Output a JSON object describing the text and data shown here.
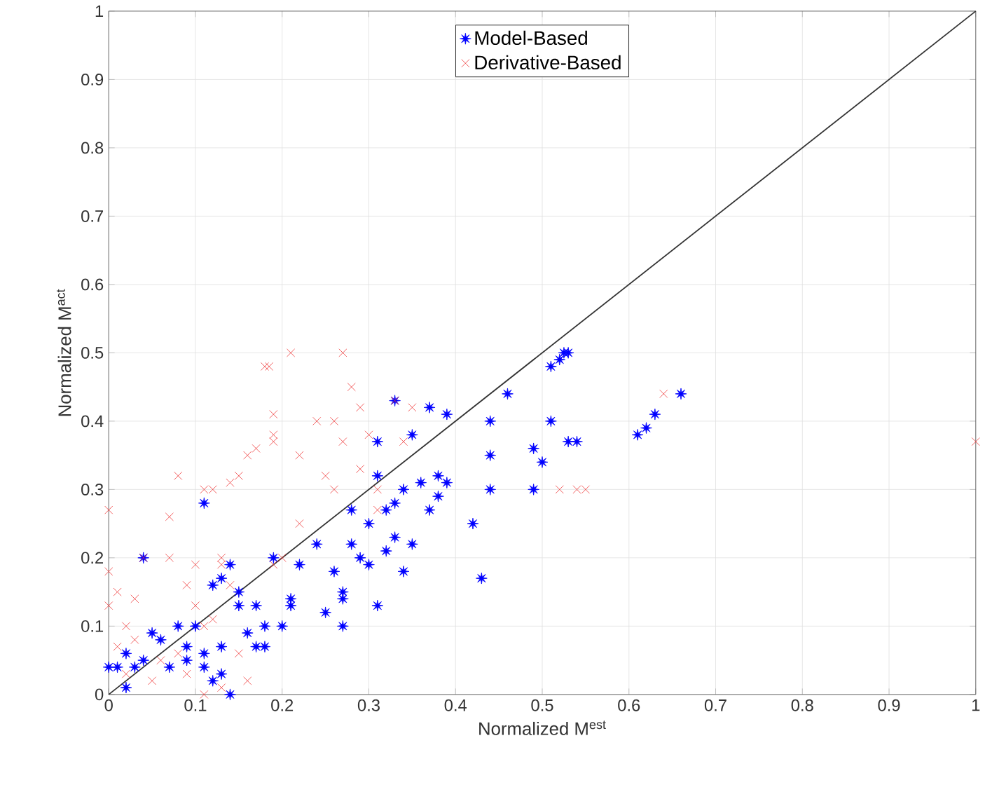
{
  "chart_data": {
    "type": "scatter",
    "xlabel": "Normalized M$^{est}$",
    "ylabel": "Normalized M$^{act}$",
    "xlim": [
      0,
      1
    ],
    "ylim": [
      0,
      1
    ],
    "xticks": [
      0,
      0.1,
      0.2,
      0.3,
      0.4,
      0.5,
      0.6,
      0.7,
      0.8,
      0.9,
      1
    ],
    "yticks": [
      0,
      0.1,
      0.2,
      0.3,
      0.4,
      0.5,
      0.6,
      0.7,
      0.8,
      0.9,
      1
    ],
    "grid": true,
    "legend": "top",
    "series": [
      {
        "name": "Model-Based",
        "color": "#0000ff",
        "marker": "star",
        "x": [
          0.04,
          0.11,
          0.33,
          0.35,
          0.37,
          0.39,
          0.44,
          0.46,
          0.51,
          0.52,
          0.53,
          0.525,
          0.61,
          0.62,
          0.63,
          0.66,
          0.51,
          0.49,
          0.5,
          0.53,
          0.54,
          0.49,
          0.44,
          0.44,
          0.42,
          0.43,
          0.38,
          0.38,
          0.39,
          0.37,
          0.36,
          0.34,
          0.33,
          0.32,
          0.31,
          0.31,
          0.3,
          0.29,
          0.3,
          0.31,
          0.27,
          0.27,
          0.27,
          0.26,
          0.28,
          0.28,
          0.24,
          0.22,
          0.21,
          0.19,
          0.18,
          0.18,
          0.17,
          0.16,
          0.17,
          0.15,
          0.15,
          0.14,
          0.13,
          0.12,
          0.13,
          0.13,
          0.14,
          0.1,
          0.11,
          0.11,
          0.09,
          0.09,
          0.08,
          0.07,
          0.06,
          0.05,
          0.04,
          0.03,
          0.02,
          0.01,
          0.0,
          0.02,
          0.12,
          0.2,
          0.21,
          0.25,
          0.34,
          0.35,
          0.32,
          0.33
        ],
        "values": [
          0.2,
          0.28,
          0.43,
          0.38,
          0.42,
          0.41,
          0.4,
          0.44,
          0.48,
          0.49,
          0.5,
          0.5,
          0.38,
          0.39,
          0.41,
          0.44,
          0.4,
          0.36,
          0.34,
          0.37,
          0.37,
          0.3,
          0.35,
          0.3,
          0.25,
          0.17,
          0.32,
          0.29,
          0.31,
          0.27,
          0.31,
          0.3,
          0.28,
          0.27,
          0.37,
          0.32,
          0.25,
          0.2,
          0.19,
          0.13,
          0.1,
          0.14,
          0.15,
          0.18,
          0.22,
          0.27,
          0.22,
          0.19,
          0.14,
          0.2,
          0.1,
          0.07,
          0.07,
          0.09,
          0.13,
          0.15,
          0.13,
          0.19,
          0.17,
          0.16,
          0.07,
          0.03,
          0.0,
          0.1,
          0.06,
          0.04,
          0.05,
          0.07,
          0.1,
          0.04,
          0.08,
          0.09,
          0.05,
          0.04,
          0.06,
          0.04,
          0.04,
          0.01,
          0.02,
          0.1,
          0.13,
          0.12,
          0.18,
          0.22,
          0.21,
          0.23
        ]
      },
      {
        "name": "Derivative-Based",
        "color": "#ee3333",
        "marker": "cross",
        "x": [
          0.0,
          0.0,
          0.0,
          0.01,
          0.03,
          0.05,
          0.04,
          0.02,
          0.07,
          0.07,
          0.08,
          0.09,
          0.1,
          0.11,
          0.11,
          0.12,
          0.13,
          0.13,
          0.14,
          0.15,
          0.16,
          0.17,
          0.18,
          0.185,
          0.19,
          0.19,
          0.19,
          0.21,
          0.22,
          0.24,
          0.26,
          0.27,
          0.27,
          0.26,
          0.25,
          0.28,
          0.29,
          0.29,
          0.3,
          0.31,
          0.31,
          0.33,
          0.34,
          0.35,
          0.22,
          0.2,
          0.19,
          0.14,
          0.12,
          0.1,
          0.08,
          0.06,
          0.03,
          0.01,
          0.02,
          0.15,
          0.16,
          0.11,
          0.13,
          0.09,
          0.54,
          0.55,
          0.52,
          0.64,
          1.0
        ],
        "values": [
          0.27,
          0.18,
          0.13,
          0.15,
          0.14,
          0.02,
          0.2,
          0.1,
          0.26,
          0.2,
          0.32,
          0.16,
          0.19,
          0.3,
          0.1,
          0.3,
          0.19,
          0.2,
          0.31,
          0.32,
          0.35,
          0.36,
          0.48,
          0.48,
          0.41,
          0.38,
          0.37,
          0.5,
          0.35,
          0.4,
          0.4,
          0.5,
          0.37,
          0.3,
          0.32,
          0.45,
          0.42,
          0.33,
          0.38,
          0.3,
          0.27,
          0.43,
          0.37,
          0.42,
          0.25,
          0.2,
          0.19,
          0.16,
          0.11,
          0.13,
          0.06,
          0.05,
          0.08,
          0.07,
          0.03,
          0.06,
          0.02,
          0.0,
          0.01,
          0.03,
          0.3,
          0.3,
          0.3,
          0.44,
          0.37
        ]
      },
      {
        "type": "line",
        "color": "#333333",
        "marker": "none",
        "x": [
          0,
          1
        ],
        "values": [
          0,
          1
        ]
      }
    ]
  }
}
